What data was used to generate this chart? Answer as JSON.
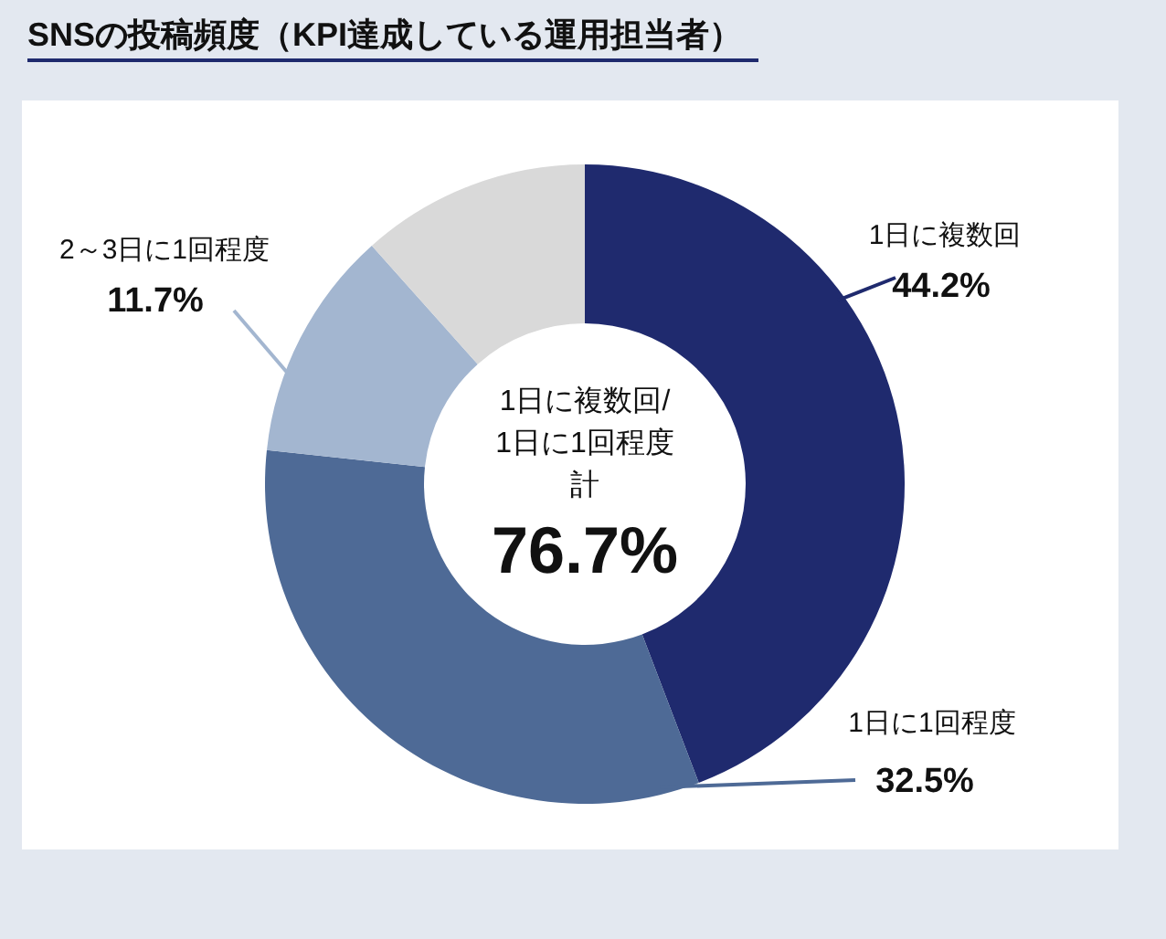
{
  "chart_data": {
    "type": "donut",
    "title": "SNSの投稿頻度（KPI達成している運用担当者）",
    "categories": [
      "1日に複数回",
      "1日に1回程度",
      "2～3日に1回程度",
      null
    ],
    "values": [
      44.2,
      32.5,
      11.7,
      11.6
    ],
    "colors": [
      "#1f2a6e",
      "#4e6a96",
      "#a3b6d0",
      "#d9d9d9"
    ],
    "value_labels": [
      "44.2%",
      "32.5%",
      "11.7%",
      null
    ],
    "annotations": [
      "1日に複数回/",
      "1日に1回程度",
      "計",
      "76.7%"
    ]
  }
}
